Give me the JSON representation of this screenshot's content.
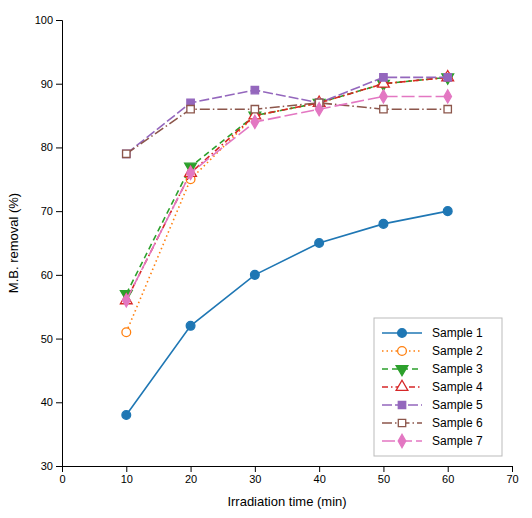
{
  "chart_data": {
    "type": "line",
    "x": [
      10,
      20,
      30,
      40,
      50,
      60
    ],
    "series": [
      {
        "name": "Sample 1",
        "values": [
          38,
          52,
          60,
          65,
          68,
          70
        ],
        "line_style": "solid",
        "marker": "filled-circle"
      },
      {
        "name": "Sample 2",
        "values": [
          51,
          75,
          85,
          87,
          90,
          91
        ],
        "line_style": "dotted",
        "marker": "open-circle"
      },
      {
        "name": "Sample 3",
        "values": [
          57,
          77,
          85,
          87,
          90,
          91
        ],
        "line_style": "dashed",
        "marker": "filled-triangle-down"
      },
      {
        "name": "Sample 4",
        "values": [
          56,
          76,
          85,
          87,
          90,
          91
        ],
        "line_style": "dashdot",
        "marker": "open-triangle-up"
      },
      {
        "name": "Sample 5",
        "values": [
          79,
          87,
          89,
          87,
          91,
          91
        ],
        "line_style": "longdash",
        "marker": "filled-square"
      },
      {
        "name": "Sample 6",
        "values": [
          79,
          86,
          86,
          87,
          86,
          86
        ],
        "line_style": "longdashdot",
        "marker": "open-square"
      },
      {
        "name": "Sample 7",
        "values": [
          56,
          76,
          84,
          86,
          88,
          88
        ],
        "line_style": "longdash2",
        "marker": "filled-diamond"
      }
    ],
    "xlabel": "Irradiation time (min)",
    "ylabel": "M.B. removal (%)",
    "xlim": [
      0,
      70
    ],
    "ylim": [
      30,
      100
    ],
    "xticks": [
      0,
      10,
      20,
      30,
      40,
      50,
      60,
      70
    ],
    "yticks": [
      30,
      40,
      50,
      60,
      70,
      80,
      90,
      100
    ],
    "grid": false,
    "legend": "lower-right"
  }
}
